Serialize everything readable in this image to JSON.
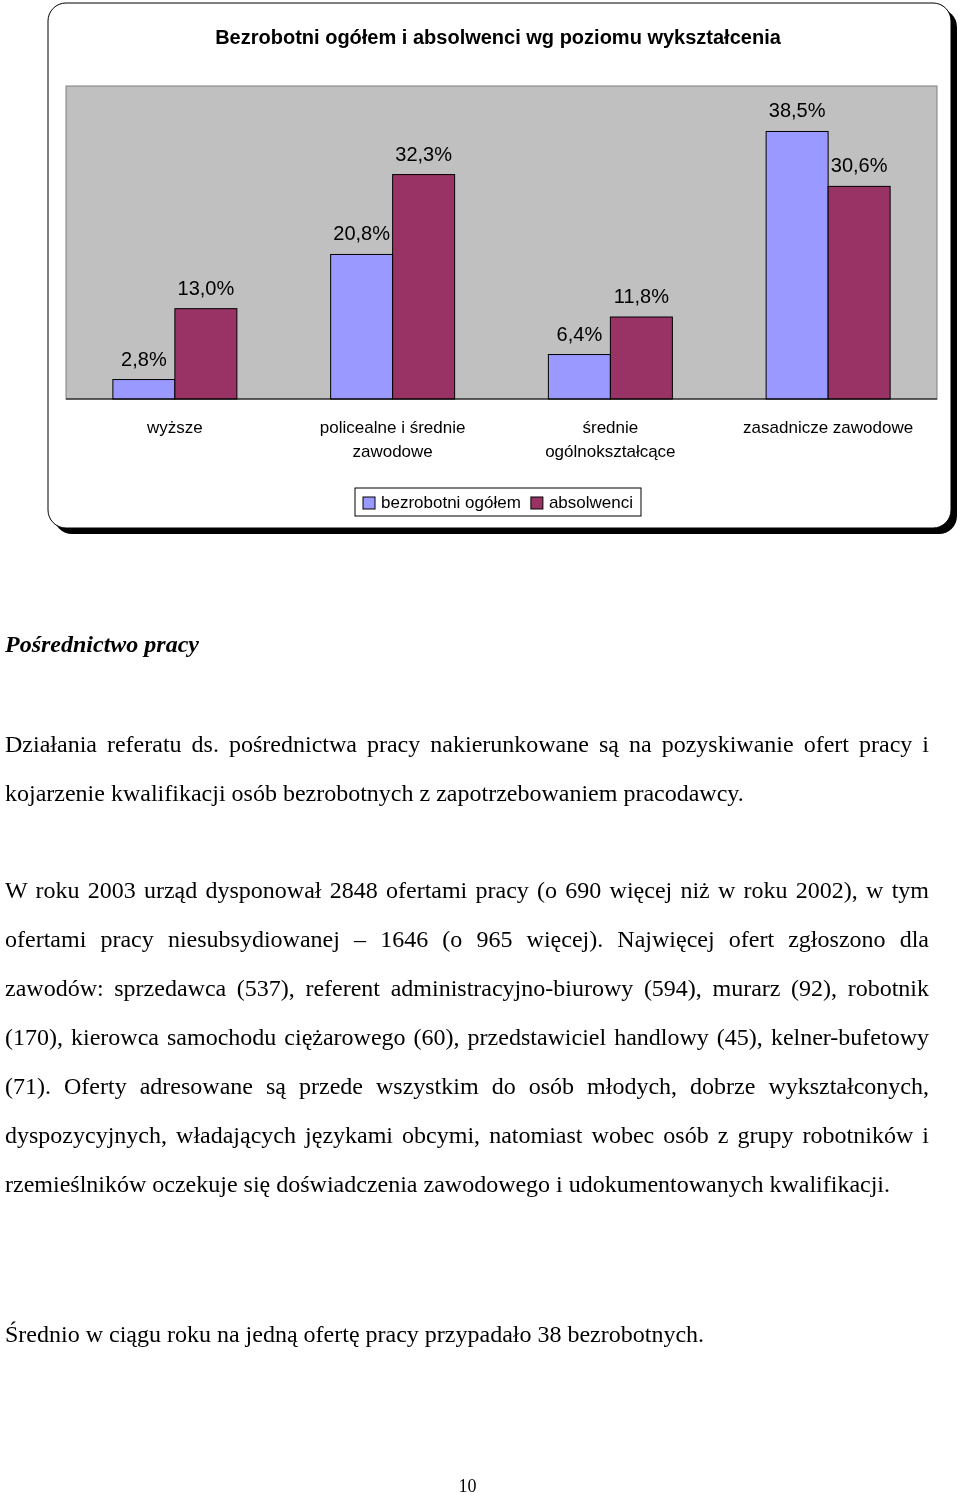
{
  "chart_data": {
    "type": "bar",
    "title": "Bezrobotni ogółem i absolwenci wg poziomu wykształcenia",
    "categories": [
      "wyższe",
      "policealne i średnie zawodowe",
      "średnie ogólnokształcące",
      "zasadnicze zawodowe"
    ],
    "series": [
      {
        "name": "bezrobotni ogółem",
        "color": "#9999ff",
        "values": [
          2.8,
          20.8,
          6.4,
          38.5
        ],
        "value_labels": [
          "2,8%",
          "20,8%",
          "6,4%",
          "38,5%"
        ]
      },
      {
        "name": "absolwenci",
        "color": "#993366",
        "values": [
          13.0,
          32.3,
          11.8,
          30.6
        ],
        "value_labels": [
          "13,0%",
          "32,3%",
          "11,8%",
          "30,6%"
        ]
      }
    ],
    "legend": "bottom",
    "annotations": [
      "Pośrednictwo pracy",
      "Działania referatu ds. pośrednictwa pracy nakierunkowane są na pozyskiwanie ofert pracy i kojarzenie kwalifikacji osób bezrobotnych z zapotrzebowaniem pracodawcy.",
      "W roku 2003 urząd dysponował 2848 ofertami pracy (o 690 więcej niż w roku 2002), w tym ofertami pracy niesubsydiowanej – 1646 (o 965 więcej). Najwięcej ofert zgłoszono dla zawodów: sprzedawca (537), referent administracyjno-biurowy (594), murarz (92), robotnik (170), kierowca samochodu ciężarowego (60), przedstawiciel handlowy (45), kelner-bufetowy (71). Oferty adresowane są przede wszystkim do osób młodych, dobrze wykształconych, dyspozycyjnych, władających językami obcymi, natomiast wobec osób z grupy robotników i rzemieślników oczekuje się doświadczenia zawodowego i udokumentowanych kwalifikacji.",
      "Średnio w ciągu roku na jedną ofertę pracy przypadało 38 bezrobotnych.",
      "10"
    ]
  }
}
